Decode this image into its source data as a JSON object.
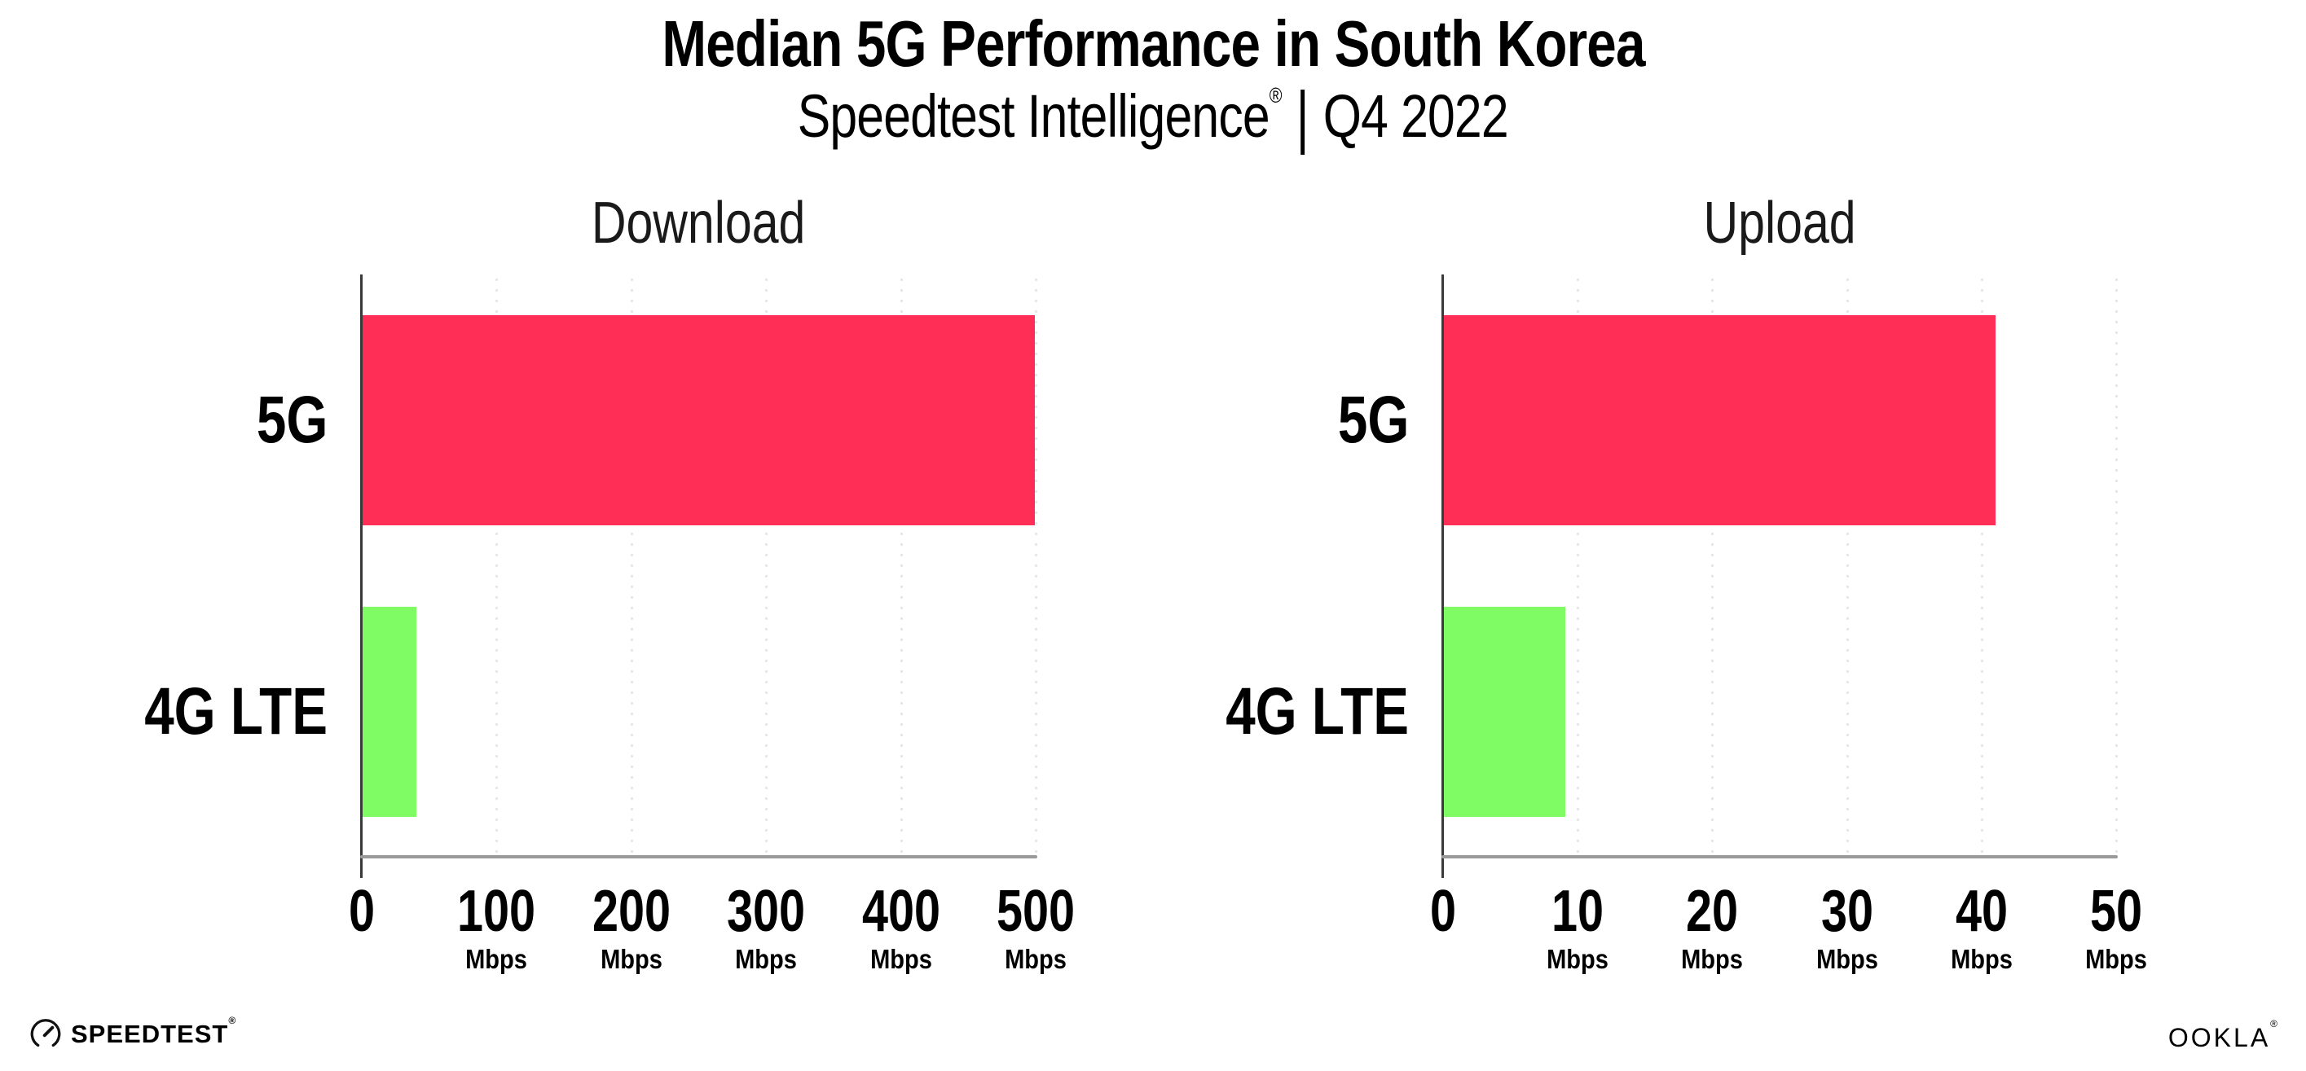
{
  "header": {
    "title": "Median 5G Performance in South Korea",
    "subtitle_brand": "Speedtest Intelligence",
    "registered_mark": "®",
    "subtitle_separator": "|",
    "subtitle_period": "Q4 2022"
  },
  "chart_data": [
    {
      "type": "bar",
      "orientation": "horizontal",
      "title": "Download",
      "categories": [
        "5G",
        "4G LTE"
      ],
      "values": [
        499,
        40
      ],
      "value_unit": "Mbps",
      "xlim": [
        0,
        500
      ],
      "xticks": [
        0,
        100,
        200,
        300,
        400,
        500
      ],
      "xtick_unit": "Mbps",
      "bar_colors": [
        "#ff2e57",
        "#7ffb63"
      ],
      "grid": "vertical-dotted",
      "legend": "none"
    },
    {
      "type": "bar",
      "orientation": "horizontal",
      "title": "Upload",
      "categories": [
        "5G",
        "4G LTE"
      ],
      "values": [
        41,
        9
      ],
      "value_unit": "Mbps",
      "xlim": [
        0,
        50
      ],
      "xticks": [
        0,
        10,
        20,
        30,
        40,
        50
      ],
      "xtick_unit": "Mbps",
      "bar_colors": [
        "#ff2e57",
        "#7ffb63"
      ],
      "grid": "vertical-dotted",
      "legend": "none"
    }
  ],
  "footer": {
    "speedtest_label": "SPEEDTEST",
    "speedtest_mark": "®",
    "ookla_label": "OOKLA",
    "ookla_mark": "®"
  },
  "colors": {
    "bar_5g": "#ff2e57",
    "bar_4g_lte": "#7ffb63",
    "axis_line": "#9a9a9a",
    "spine": "#3a3a3a",
    "grid_dot": "#e4e4ec",
    "text": "#000000",
    "background": "#ffffff"
  }
}
